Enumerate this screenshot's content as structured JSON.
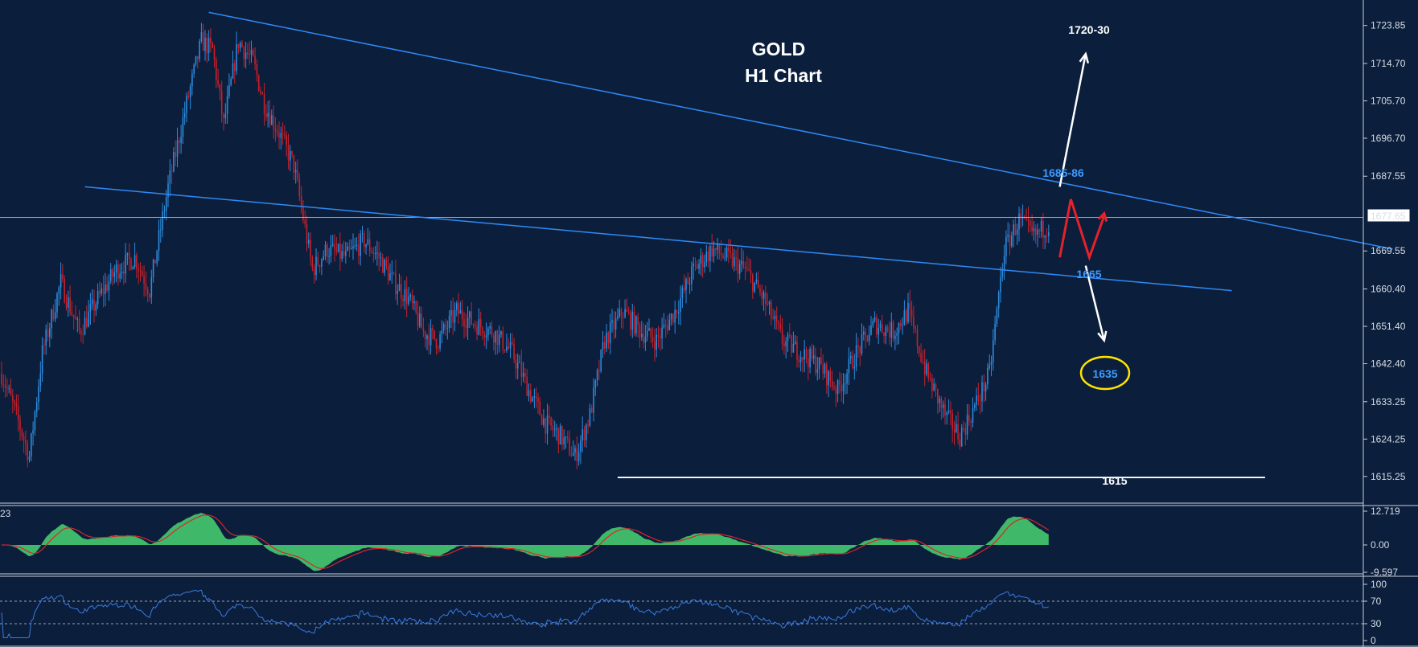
{
  "chart_data": {
    "type": "candlestick",
    "title": "GOLD",
    "subtitle": "H1 Chart",
    "current_price": "1677.65",
    "colors": {
      "background": "#0b1e3c",
      "up": "#2e8bdc",
      "down": "#c8202a",
      "trendline": "#2f8af5",
      "annotation_blue": "#3d9bff",
      "histogram": "#3fb86a",
      "signal": "#d8262a",
      "rsi": "#3a7be0",
      "marker": "#ffe400"
    },
    "price_axis": {
      "ticks": [
        "1723.85",
        "1714.70",
        "1705.70",
        "1696.70",
        "1687.55",
        "1669.55",
        "1660.40",
        "1651.40",
        "1642.40",
        "1633.25",
        "1624.25",
        "1615.25"
      ],
      "range": [
        1612.5,
        1726.5
      ]
    },
    "macd_panel": {
      "label": "23",
      "ticks": [
        "12.719",
        "0.00",
        "-9.597"
      ]
    },
    "rsi_panel": {
      "ticks": [
        "100",
        "70",
        "30",
        "0"
      ],
      "levels": [
        70,
        30
      ]
    },
    "price_path": [
      [
        0,
        1640
      ],
      [
        8,
        1630
      ],
      [
        15,
        1620
      ],
      [
        22,
        1645
      ],
      [
        32,
        1662
      ],
      [
        42,
        1650
      ],
      [
        52,
        1658
      ],
      [
        62,
        1665
      ],
      [
        72,
        1668
      ],
      [
        80,
        1660
      ],
      [
        90,
        1685
      ],
      [
        100,
        1705
      ],
      [
        108,
        1720
      ],
      [
        114,
        1718
      ],
      [
        120,
        1700
      ],
      [
        128,
        1720
      ],
      [
        136,
        1715
      ],
      [
        142,
        1705
      ],
      [
        150,
        1698
      ],
      [
        158,
        1690
      ],
      [
        168,
        1665
      ],
      [
        176,
        1670
      ],
      [
        186,
        1668
      ],
      [
        196,
        1672
      ],
      [
        204,
        1668
      ],
      [
        212,
        1662
      ],
      [
        220,
        1658
      ],
      [
        228,
        1650
      ],
      [
        236,
        1648
      ],
      [
        246,
        1655
      ],
      [
        256,
        1652
      ],
      [
        266,
        1650
      ],
      [
        276,
        1645
      ],
      [
        286,
        1635
      ],
      [
        294,
        1628
      ],
      [
        302,
        1625
      ],
      [
        310,
        1620
      ],
      [
        318,
        1630
      ],
      [
        326,
        1648
      ],
      [
        336,
        1655
      ],
      [
        346,
        1650
      ],
      [
        354,
        1648
      ],
      [
        364,
        1655
      ],
      [
        374,
        1665
      ],
      [
        384,
        1670
      ],
      [
        392,
        1668
      ],
      [
        402,
        1665
      ],
      [
        412,
        1658
      ],
      [
        422,
        1648
      ],
      [
        432,
        1645
      ],
      [
        442,
        1642
      ],
      [
        452,
        1636
      ],
      [
        462,
        1645
      ],
      [
        472,
        1652
      ],
      [
        482,
        1650
      ],
      [
        490,
        1655
      ],
      [
        500,
        1640
      ],
      [
        510,
        1630
      ],
      [
        518,
        1625
      ],
      [
        526,
        1632
      ],
      [
        534,
        1640
      ],
      [
        542,
        1670
      ],
      [
        550,
        1677
      ],
      [
        558,
        1673
      ],
      [
        566,
        1676
      ]
    ],
    "trendlines": [
      {
        "from": [
          112,
          1727
        ],
        "to": [
          752,
          1670
        ]
      },
      {
        "from": [
          45,
          1685
        ],
        "to": [
          665,
          1660
        ]
      }
    ],
    "support_line": {
      "value": 1615,
      "from": 333,
      "to": 683
    },
    "annotations": {
      "target_up": "1720-30",
      "resistance": "1685-86",
      "support": "1665",
      "target_down": "1635",
      "major_support": "1615"
    },
    "projection_path": [
      [
        572,
        1668
      ],
      [
        578,
        1682
      ],
      [
        588,
        1668
      ],
      [
        596,
        1678
      ]
    ],
    "projection_arrows": [
      {
        "from": [
          572,
          1685
        ],
        "to": [
          586,
          1717
        ]
      },
      {
        "from": [
          586,
          1666
        ],
        "to": [
          596,
          1648
        ]
      }
    ]
  }
}
